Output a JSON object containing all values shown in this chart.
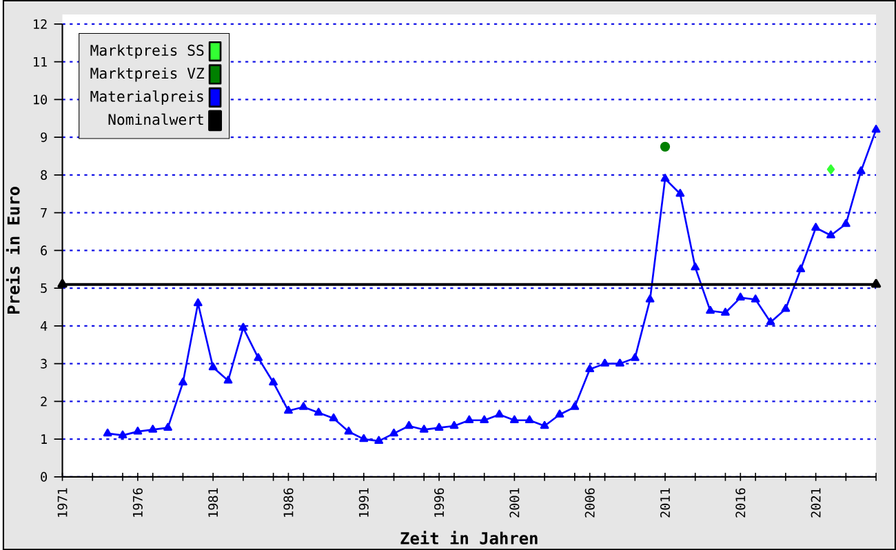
{
  "chart_data": {
    "type": "line",
    "xlabel": "Zeit in Jahren",
    "ylabel": "Preis in Euro",
    "xlim": [
      1971,
      2025
    ],
    "ylim": [
      0,
      12
    ],
    "xticks": [
      1971,
      {
        "value": 1973,
        "label": null
      },
      {
        "value": 1975,
        "label": null
      },
      1976,
      {
        "value": 1977,
        "label": null
      },
      {
        "value": 1979,
        "label": null
      },
      1981,
      {
        "value": 1983,
        "label": null
      },
      {
        "value": 1985,
        "label": null
      },
      1986,
      {
        "value": 1987,
        "label": null
      },
      {
        "value": 1989,
        "label": null
      },
      1991,
      {
        "value": 1993,
        "label": null
      },
      {
        "value": 1995,
        "label": null
      },
      1996,
      {
        "value": 1997,
        "label": null
      },
      {
        "value": 1999,
        "label": null
      },
      2001,
      {
        "value": 2003,
        "label": null
      },
      {
        "value": 2005,
        "label": null
      },
      2006,
      {
        "value": 2007,
        "label": null
      },
      {
        "value": 2009,
        "label": null
      },
      2011,
      {
        "value": 2013,
        "label": null
      },
      {
        "value": 2015,
        "label": null
      },
      2016,
      {
        "value": 2017,
        "label": null
      },
      {
        "value": 2019,
        "label": null
      },
      2021,
      {
        "value": 2023,
        "label": null
      },
      {
        "value": 2025,
        "label": null
      }
    ],
    "yticks": [
      0,
      1,
      2,
      3,
      4,
      5,
      6,
      7,
      8,
      9,
      10,
      11,
      12
    ],
    "grid": "y",
    "legend": "top left",
    "series": [
      {
        "name": "Marktpreis SS",
        "type": "scatter",
        "marker": "diamond",
        "color": "#33ff33",
        "x": [
          2022
        ],
        "values": [
          8.15
        ]
      },
      {
        "name": "Marktpreis VZ",
        "type": "scatter",
        "marker": "circle",
        "color": "#008000",
        "x": [
          2011
        ],
        "values": [
          8.75
        ]
      },
      {
        "name": "Materialpreis",
        "marker": "triangle",
        "color": "#0000ff",
        "x": [
          1974,
          1975,
          1976,
          1977,
          1978,
          1979,
          1980,
          1981,
          1982,
          1983,
          1984,
          1985,
          1986,
          1987,
          1988,
          1989,
          1990,
          1991,
          1992,
          1993,
          1994,
          1995,
          1996,
          1997,
          1998,
          1999,
          2000,
          2001,
          2002,
          2003,
          2004,
          2005,
          2006,
          2007,
          2008,
          2009,
          2010,
          2011,
          2012,
          2013,
          2014,
          2015,
          2016,
          2017,
          2018,
          2019,
          2020,
          2021,
          2022,
          2023,
          2024,
          2025
        ],
        "values": [
          1.15,
          1.1,
          1.2,
          1.25,
          1.3,
          2.5,
          4.6,
          2.9,
          2.55,
          3.95,
          3.15,
          2.5,
          1.75,
          1.85,
          1.7,
          1.55,
          1.2,
          1.0,
          0.95,
          1.15,
          1.35,
          1.25,
          1.3,
          1.35,
          1.5,
          1.5,
          1.65,
          1.5,
          1.5,
          1.35,
          1.65,
          1.85,
          2.85,
          3.0,
          3.0,
          3.15,
          4.7,
          7.9,
          7.5,
          5.55,
          4.4,
          4.35,
          4.75,
          4.7,
          4.1,
          4.45,
          5.5,
          6.6,
          6.4,
          6.7,
          8.1,
          9.2
        ]
      },
      {
        "name": "Nominalwert",
        "marker": "triangle",
        "color": "#000000",
        "x": [
          1971,
          2025
        ],
        "values": [
          5.1,
          5.1
        ]
      }
    ]
  }
}
